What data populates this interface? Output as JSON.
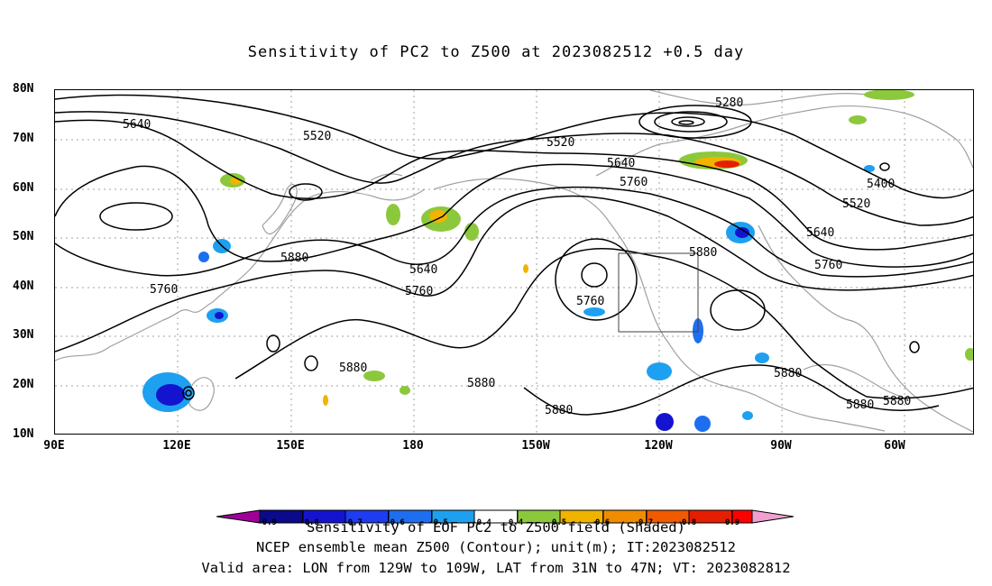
{
  "title": "Sensitivity of PC2 to Z500 at 2023082512 +0.5 day",
  "map": {
    "lat_labels": [
      "80N",
      "70N",
      "60N",
      "50N",
      "40N",
      "30N",
      "20N",
      "10N"
    ],
    "lon_labels": [
      "90E",
      "120E",
      "150E",
      "180",
      "150W",
      "120W",
      "90W",
      "60W"
    ],
    "contour_labels": [
      "5280",
      "5400",
      "5520",
      "5520",
      "5520",
      "5640",
      "5640",
      "5640",
      "5640",
      "5760",
      "5760",
      "5760",
      "5760",
      "5760",
      "5880",
      "5880",
      "5880",
      "5880",
      "5880",
      "5880",
      "5880",
      "5880"
    ],
    "valid_box": {
      "lon_from": "129W",
      "lon_to": "109W",
      "lat_from": "31N",
      "lat_to": "47N"
    },
    "contour_color": "#000000",
    "coastline_color": "#a0a0a0",
    "grid_color": "#a0a0a0"
  },
  "colorbar": {
    "labels": [
      "-0.9",
      "-0.8",
      "-0.7",
      "-0.6",
      "-0.5",
      "-0.4",
      "0.4",
      "0.5",
      "0.6",
      "0.7",
      "0.8",
      "0.9"
    ],
    "colors": [
      "#a0009a",
      "#0a0a8a",
      "#1414d0",
      "#1e3cf0",
      "#1e6ef0",
      "#1ea0f0",
      "#10c8e8",
      "#ffffff",
      "#8cc83c",
      "#f0b400",
      "#f08c00",
      "#f05a00",
      "#e61e00",
      "#ff0000",
      "#f0a0d0"
    ]
  },
  "captions": {
    "line1": "Sensitivity of EOF PC2 to Z500 field (Shaded)",
    "line2": "NCEP ensemble mean Z500 (Contour); unit(m); IT:2023082512",
    "line3": "Valid area: LON from 129W to 109W, LAT from 31N to 47N; VT: 2023082812"
  }
}
